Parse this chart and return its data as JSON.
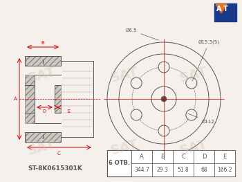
{
  "bg_color": "#f5f0eb",
  "part_number": "ST-8K0615301K",
  "holes_count": "6",
  "holes_label": "ОТВ.",
  "dim_A": "344.7",
  "dim_B": "29.3",
  "dim_C": "51.8",
  "dim_D": "68",
  "dim_E": "166.2",
  "dia_bolt": "Ø15.3(5)",
  "dia_pcd": "Ø112",
  "dia_hub": "Ø6.5",
  "sat_logo_color": "#c0c0c0",
  "line_color": "#555555",
  "red_dim_color": "#cc0000",
  "table_bg": "#ffffff",
  "at_orange": "#e87020",
  "at_blue": "#1a3a8a"
}
